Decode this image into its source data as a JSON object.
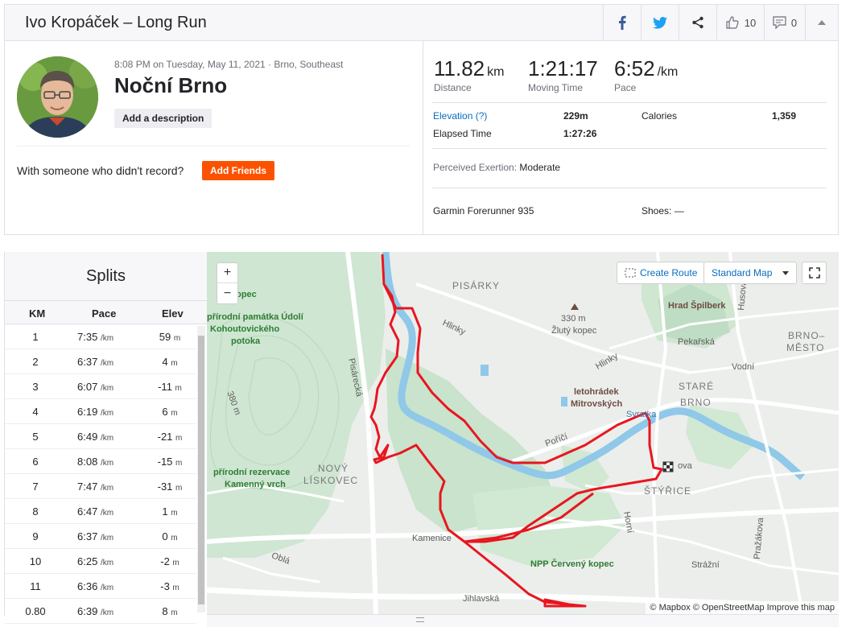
{
  "header": {
    "title": "Ivo Kropáček – Long Run",
    "kudos_count": "10",
    "comment_count": "0"
  },
  "activity": {
    "date_line": "8:08 PM on Tuesday, May 11, 2021 · Brno, Southeast",
    "name": "Noční Brno",
    "add_description": "Add a description",
    "friends_question": "With someone who didn't record?",
    "add_friends": "Add Friends"
  },
  "stats": {
    "distance": {
      "value": "11.82",
      "unit": "km",
      "label": "Distance"
    },
    "moving_time": {
      "value": "1:21:17",
      "label": "Moving Time"
    },
    "pace": {
      "value": "6:52",
      "unit": "/km",
      "label": "Pace"
    },
    "elevation_label": "Elevation (?)",
    "elevation_value": "229m",
    "calories_label": "Calories",
    "calories_value": "1,359",
    "elapsed_label": "Elapsed Time",
    "elapsed_value": "1:27:26",
    "exertion_label": "Perceived Exertion:",
    "exertion_value": "Moderate",
    "device": "Garmin Forerunner 935",
    "shoes_label": "Shoes:",
    "shoes_value": "—"
  },
  "splits": {
    "title": "Splits",
    "columns": [
      "KM",
      "Pace",
      "Elev"
    ],
    "pace_unit": "/km",
    "elev_unit": "m",
    "rows": [
      {
        "km": "1",
        "pace": "7:35",
        "elev": "59"
      },
      {
        "km": "2",
        "pace": "6:37",
        "elev": "4"
      },
      {
        "km": "3",
        "pace": "6:07",
        "elev": "-11"
      },
      {
        "km": "4",
        "pace": "6:19",
        "elev": "6"
      },
      {
        "km": "5",
        "pace": "6:49",
        "elev": "-21"
      },
      {
        "km": "6",
        "pace": "8:08",
        "elev": "-15"
      },
      {
        "km": "7",
        "pace": "7:47",
        "elev": "-31"
      },
      {
        "km": "8",
        "pace": "6:47",
        "elev": "1"
      },
      {
        "km": "9",
        "pace": "6:37",
        "elev": "0"
      },
      {
        "km": "10",
        "pace": "6:25",
        "elev": "-2"
      },
      {
        "km": "11",
        "pace": "6:36",
        "elev": "-3"
      },
      {
        "km": "0.80",
        "pace": "6:39",
        "elev": "8"
      }
    ]
  },
  "map": {
    "create_route": "Create Route",
    "map_style": "Standard Map",
    "attribution": "© Mapbox © OpenStreetMap Improve this map",
    "labels": {
      "pisarky": "PISÁRKY",
      "hill_330": "330 m",
      "zluty_kopec": "Žlutý kopec",
      "hrad": "Hrad Špilberk",
      "brno_mesto_1": "BRNO–",
      "brno_mesto_2": "MĚSTO",
      "pekarska": "Pekařská",
      "vodni": "Vodní",
      "stare_brno_1": "STARÉ",
      "stare_brno_2": "BRNO",
      "letohradek_1": "letohrádek",
      "letohradek_2": "Mitrovských",
      "svratka": "Svratka",
      "porici": "Poříčí",
      "hlinky_1": "Hlinky",
      "hlinky_2": "Hlinky",
      "kopec_partial": "kopec",
      "udoli_1": "přírodní památka Údolí",
      "udoli_2": "Kohoutovického",
      "udoli_3": "potoka",
      "pisarecka": "Pisárecká",
      "e380": "380 m",
      "rezervace_1": "přírodní rezervace",
      "rezervace_2": "Kamenný vrch",
      "novy_1": "NOVÝ",
      "novy_2": "LÍSKOVEC",
      "styrice": "ŠTÝŘICE",
      "kamenice": "Kamenice",
      "obla": "Oblá",
      "cerveny": "NPP Červený kopec",
      "strazni": "Strážní",
      "jihlavska": "Jihlavská",
      "horni": "Horní",
      "prazakova": "Pražákova",
      "husova": "Husova",
      "ova": "ova"
    }
  }
}
